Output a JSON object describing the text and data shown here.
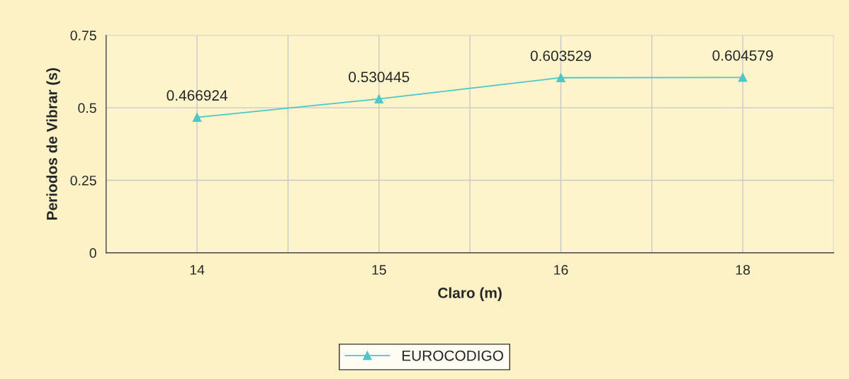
{
  "chart_data": {
    "type": "line",
    "xlabel": "Claro (m)",
    "ylabel": "Periodos de Vibrar (s)",
    "categories": [
      "14",
      "15",
      "16",
      "18"
    ],
    "series": [
      {
        "name": "EUROCODIGO",
        "color": "#4fc6c9",
        "values": [
          0.466924,
          0.530445,
          0.603529,
          0.604579
        ]
      }
    ],
    "ylim": [
      0,
      0.75
    ],
    "yticks": [
      0,
      0.25,
      0.5,
      0.75
    ],
    "grid": true,
    "legend": "bottom",
    "marker": "triangle",
    "data_labels": true
  }
}
